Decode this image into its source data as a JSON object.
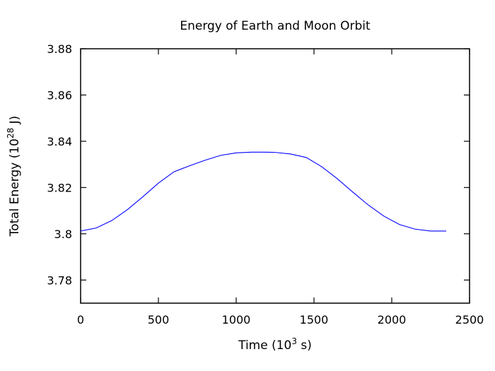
{
  "chart_data": {
    "type": "line",
    "title": "Energy of Earth and Moon Orbit",
    "xlabel_base": "Time (10",
    "xlabel_exp": "3",
    "xlabel_tail": " s)",
    "ylabel_base": "Total Energy (10",
    "ylabel_exp": "28",
    "ylabel_tail": " J)",
    "xlim": [
      0,
      2500
    ],
    "ylim": [
      3.77,
      3.88
    ],
    "xticks": [
      0,
      500,
      1000,
      1500,
      2000,
      2500
    ],
    "xtick_labels": [
      "0",
      "500",
      "1000",
      "1500",
      "2000",
      "2500"
    ],
    "yticks": [
      3.78,
      3.8,
      3.82,
      3.84,
      3.86,
      3.88
    ],
    "ytick_labels": [
      "3.78",
      "3.8",
      "3.82",
      "3.84",
      "3.86",
      "3.88"
    ],
    "grid": false,
    "series": [
      {
        "color": "#0000ff",
        "x": [
          0,
          100,
          200,
          300,
          400,
          500,
          600,
          700,
          800,
          900,
          1000,
          1100,
          1175,
          1250,
          1350,
          1450,
          1550,
          1650,
          1750,
          1850,
          1950,
          2050,
          2150,
          2250,
          2350
        ],
        "y": [
          3.8012,
          3.8025,
          3.8057,
          3.8104,
          3.816,
          3.8219,
          3.8268,
          3.8294,
          3.8318,
          3.8339,
          3.835,
          3.8353,
          3.8353,
          3.8352,
          3.8345,
          3.833,
          3.829,
          3.8238,
          3.818,
          3.8124,
          3.8076,
          3.804,
          3.802,
          3.8012,
          3.8012
        ]
      }
    ]
  }
}
